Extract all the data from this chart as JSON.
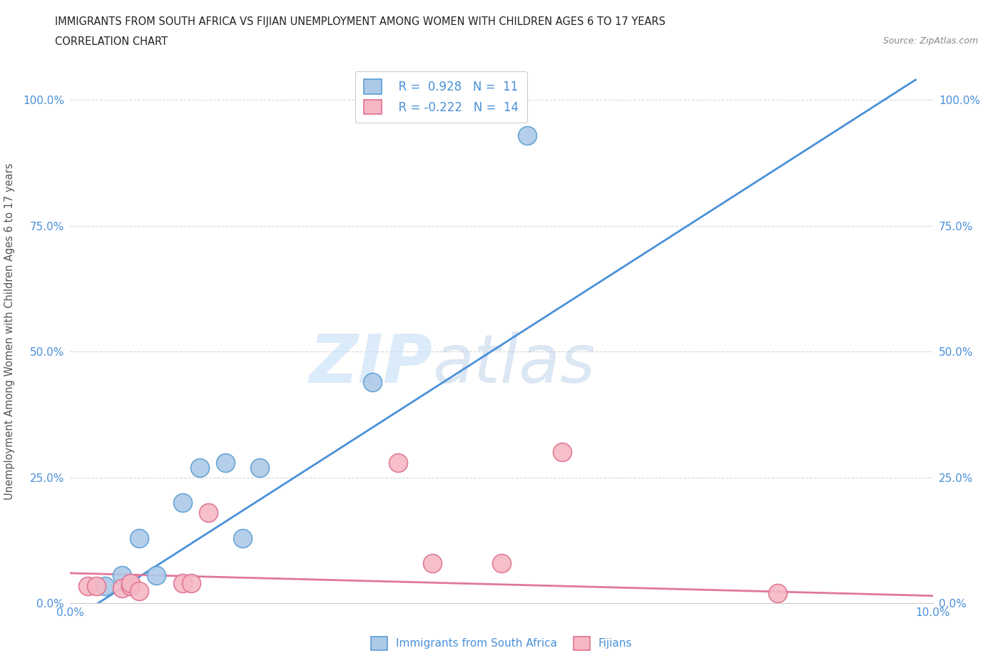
{
  "title_line1": "IMMIGRANTS FROM SOUTH AFRICA VS FIJIAN UNEMPLOYMENT AMONG WOMEN WITH CHILDREN AGES 6 TO 17 YEARS",
  "title_line2": "CORRELATION CHART",
  "source_text": "Source: ZipAtlas.com",
  "ylabel": "Unemployment Among Women with Children Ages 6 to 17 years",
  "xlim": [
    0.0,
    0.1
  ],
  "ylim": [
    0.0,
    1.08
  ],
  "ytick_values": [
    0.0,
    0.25,
    0.5,
    0.75,
    1.0
  ],
  "ytick_labels": [
    "0.0%",
    "25.0%",
    "50.0%",
    "75.0%",
    "100.0%"
  ],
  "xtick_values": [
    0.0,
    0.1
  ],
  "xtick_labels": [
    "0.0%",
    "10.0%"
  ],
  "watermark_zip": "ZIP",
  "watermark_atlas": "atlas",
  "blue_color": "#adc9e8",
  "blue_edge_color": "#5a9fd4",
  "blue_line_color": "#4a90d9",
  "pink_color": "#f5b8c4",
  "pink_edge_color": "#e07090",
  "pink_line_color": "#e07898",
  "legend_label_color": "#4a90d9",
  "blue_points_x": [
    0.004,
    0.006,
    0.008,
    0.01,
    0.013,
    0.015,
    0.018,
    0.02,
    0.022,
    0.035,
    0.053
  ],
  "blue_points_y": [
    0.035,
    0.055,
    0.13,
    0.055,
    0.2,
    0.27,
    0.28,
    0.13,
    0.27,
    0.44,
    0.93
  ],
  "pink_points_x": [
    0.002,
    0.003,
    0.006,
    0.007,
    0.007,
    0.008,
    0.013,
    0.014,
    0.016,
    0.038,
    0.042,
    0.05,
    0.057,
    0.082
  ],
  "pink_points_y": [
    0.035,
    0.035,
    0.03,
    0.035,
    0.04,
    0.025,
    0.04,
    0.04,
    0.18,
    0.28,
    0.08,
    0.08,
    0.3,
    0.02
  ],
  "blue_line_x": [
    -0.005,
    0.098
  ],
  "blue_line_y": [
    -0.09,
    1.04
  ],
  "pink_line_x": [
    0.0,
    0.1
  ],
  "pink_line_y": [
    0.06,
    0.015
  ],
  "background_color": "#ffffff",
  "grid_color": "#cccccc",
  "title_color": "#222222",
  "axis_label_color": "#555555"
}
